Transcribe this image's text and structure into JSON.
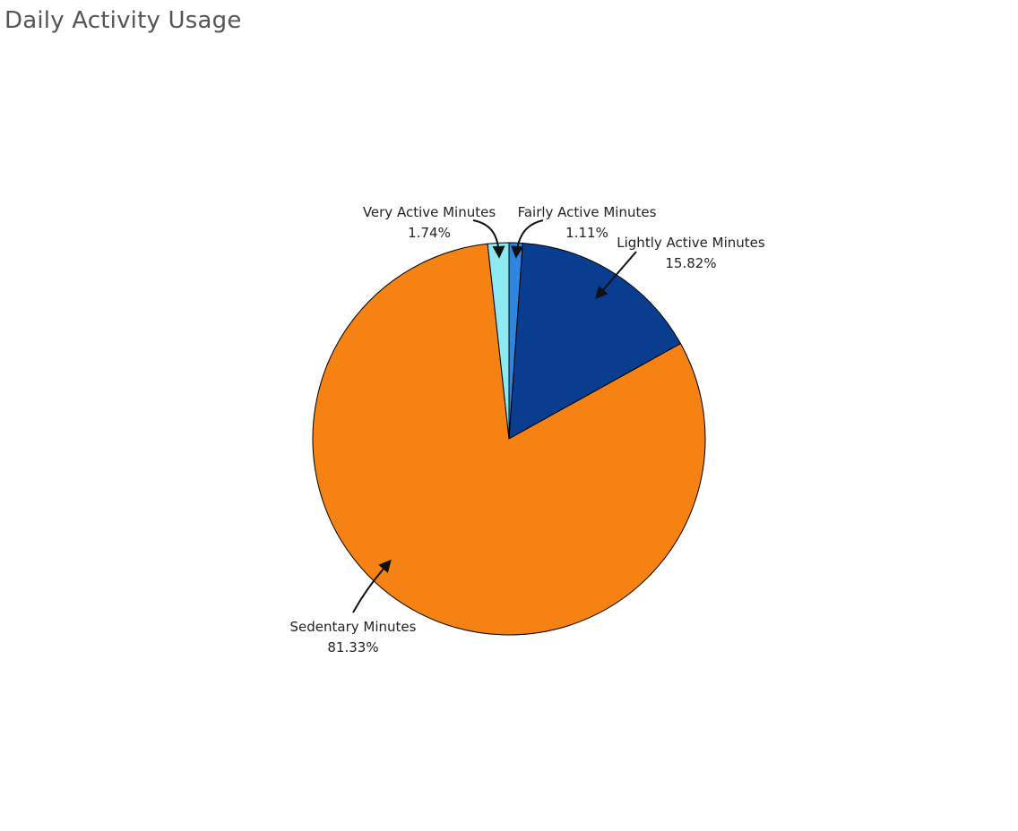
{
  "chart_data": {
    "type": "pie",
    "title": "Daily Activity Usage",
    "slices": [
      {
        "label": "Fairly Active Minutes",
        "value": 1.11,
        "value_label": "1.11%",
        "color": "#2f85e2"
      },
      {
        "label": "Lightly Active Minutes",
        "value": 15.82,
        "value_label": "15.82%",
        "color": "#083d90"
      },
      {
        "label": "Sedentary Minutes",
        "value": 81.33,
        "value_label": "81.33%",
        "color": "#f58213"
      },
      {
        "label": "Very Active Minutes",
        "value": 1.74,
        "value_label": "1.74%",
        "color": "#8fe9f0"
      }
    ],
    "start_angle": "12 o'clock",
    "direction": "clockwise",
    "slice_outline": "#000000"
  }
}
